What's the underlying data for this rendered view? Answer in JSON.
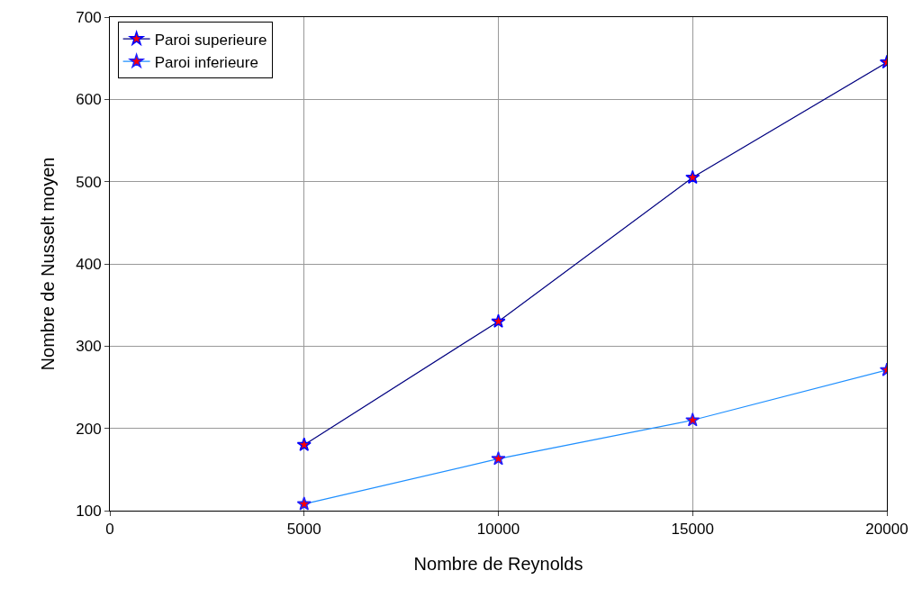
{
  "chart_data": {
    "type": "line",
    "xlabel": "Nombre de Reynolds",
    "ylabel": "Nombre de Nusselt moyen",
    "x": [
      5000,
      10000,
      15000,
      20000
    ],
    "series": [
      {
        "name": "Paroi superieure",
        "color": "#000080",
        "values": [
          180,
          330,
          505,
          645
        ]
      },
      {
        "name": "Paroi inferieure",
        "color": "#1e8fff",
        "values": [
          108,
          163,
          210,
          271
        ]
      }
    ],
    "xlim": [
      0,
      20000
    ],
    "xticks": [
      0,
      5000,
      10000,
      15000,
      20000
    ],
    "ylim": [
      100,
      700
    ],
    "yticks": [
      100,
      200,
      300,
      400,
      500,
      600,
      700
    ],
    "grid": true,
    "legend": "top left",
    "marker": "star",
    "line_style": "solid"
  }
}
